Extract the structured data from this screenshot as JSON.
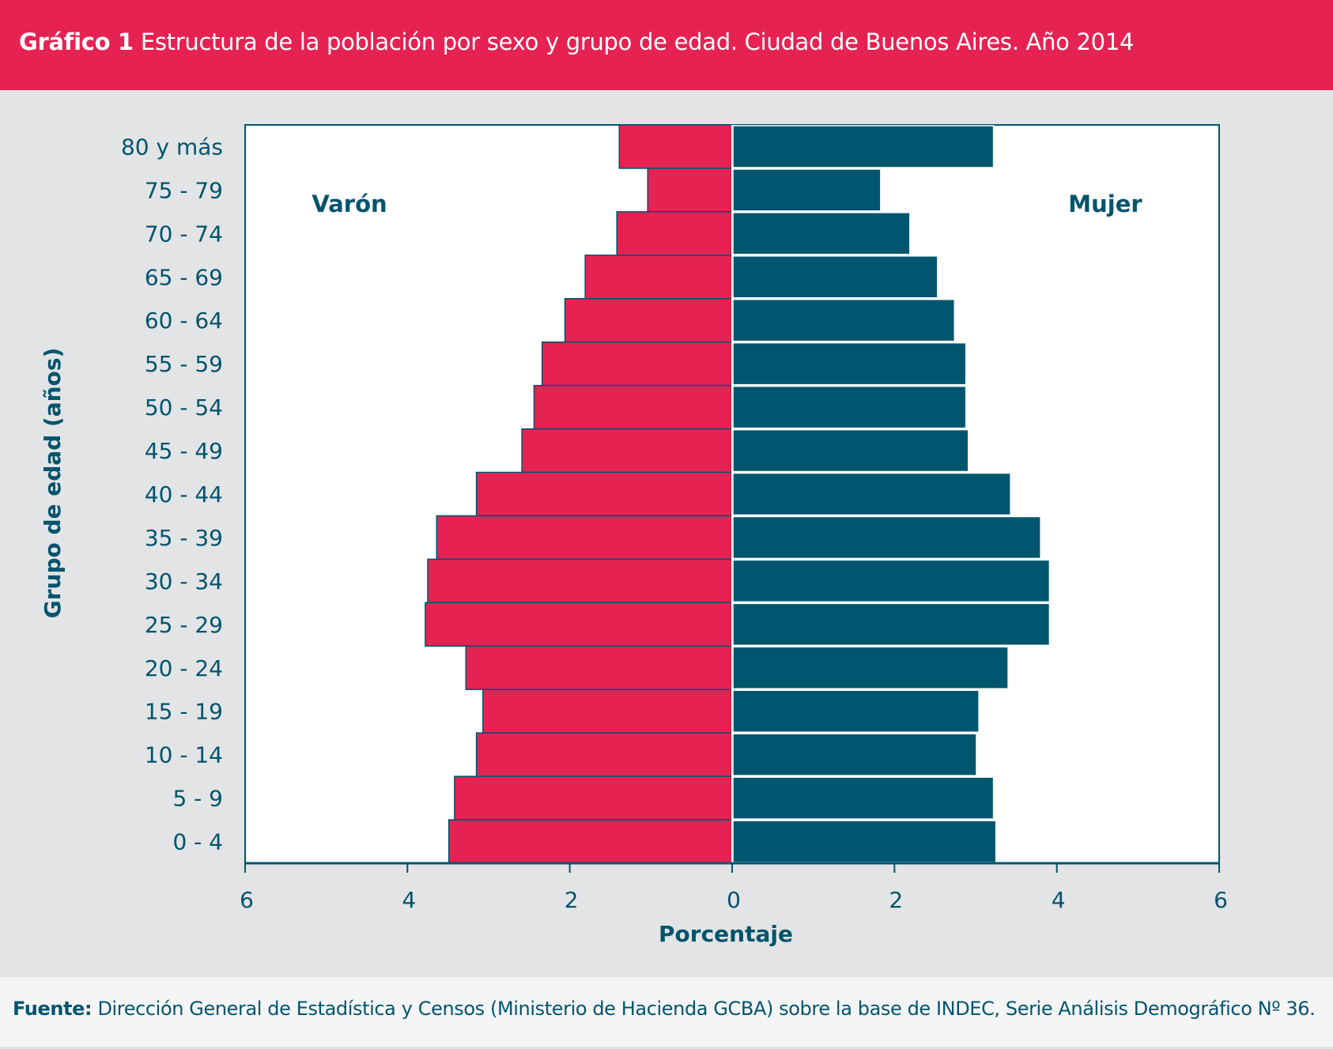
{
  "header": {
    "label": "Gráfico 1",
    "title": "Estructura de la población por sexo y grupo de edad. Ciudad de Buenos Aires. Año 2014"
  },
  "footer": {
    "label": "Fuente:",
    "text": "Dirección General de Estadística y Censos (Ministerio de Hacienda GCBA) sobre la base de INDEC, Serie Análisis Demográfico Nº 36."
  },
  "colors": {
    "male": "#e62253",
    "female": "#00566f",
    "text": "#00546e"
  },
  "chart_data": {
    "type": "bar",
    "orientation": "horizontal-population-pyramid",
    "title": "Estructura de la población por sexo y grupo de edad. Ciudad de Buenos Aires. Año 2014",
    "xlabel": "Porcentaje",
    "ylabel": "Grupo de edad (años)",
    "xlim": [
      -6,
      6
    ],
    "xticks": [
      6,
      4,
      2,
      0,
      2,
      4,
      6
    ],
    "grid": false,
    "categories": [
      "80 y más",
      "75 - 79",
      "70 - 74",
      "65 - 69",
      "60 - 64",
      "55 - 59",
      "50 - 54",
      "45 - 49",
      "40 - 44",
      "35 - 39",
      "30 - 34",
      "25 - 29",
      "20 - 24",
      "15 - 19",
      "10 - 14",
      "5 - 9",
      "0 - 4"
    ],
    "series": [
      {
        "name": "Varón",
        "side": "left",
        "values": [
          1.39,
          1.04,
          1.42,
          1.81,
          2.06,
          2.34,
          2.44,
          2.59,
          3.15,
          3.64,
          3.75,
          3.78,
          3.28,
          3.07,
          3.15,
          3.42,
          3.49
        ]
      },
      {
        "name": "Mujer",
        "side": "right",
        "values": [
          3.22,
          1.83,
          2.19,
          2.53,
          2.74,
          2.88,
          2.88,
          2.91,
          3.43,
          3.8,
          3.91,
          3.91,
          3.4,
          3.04,
          3.01,
          3.22,
          3.25
        ]
      }
    ]
  }
}
